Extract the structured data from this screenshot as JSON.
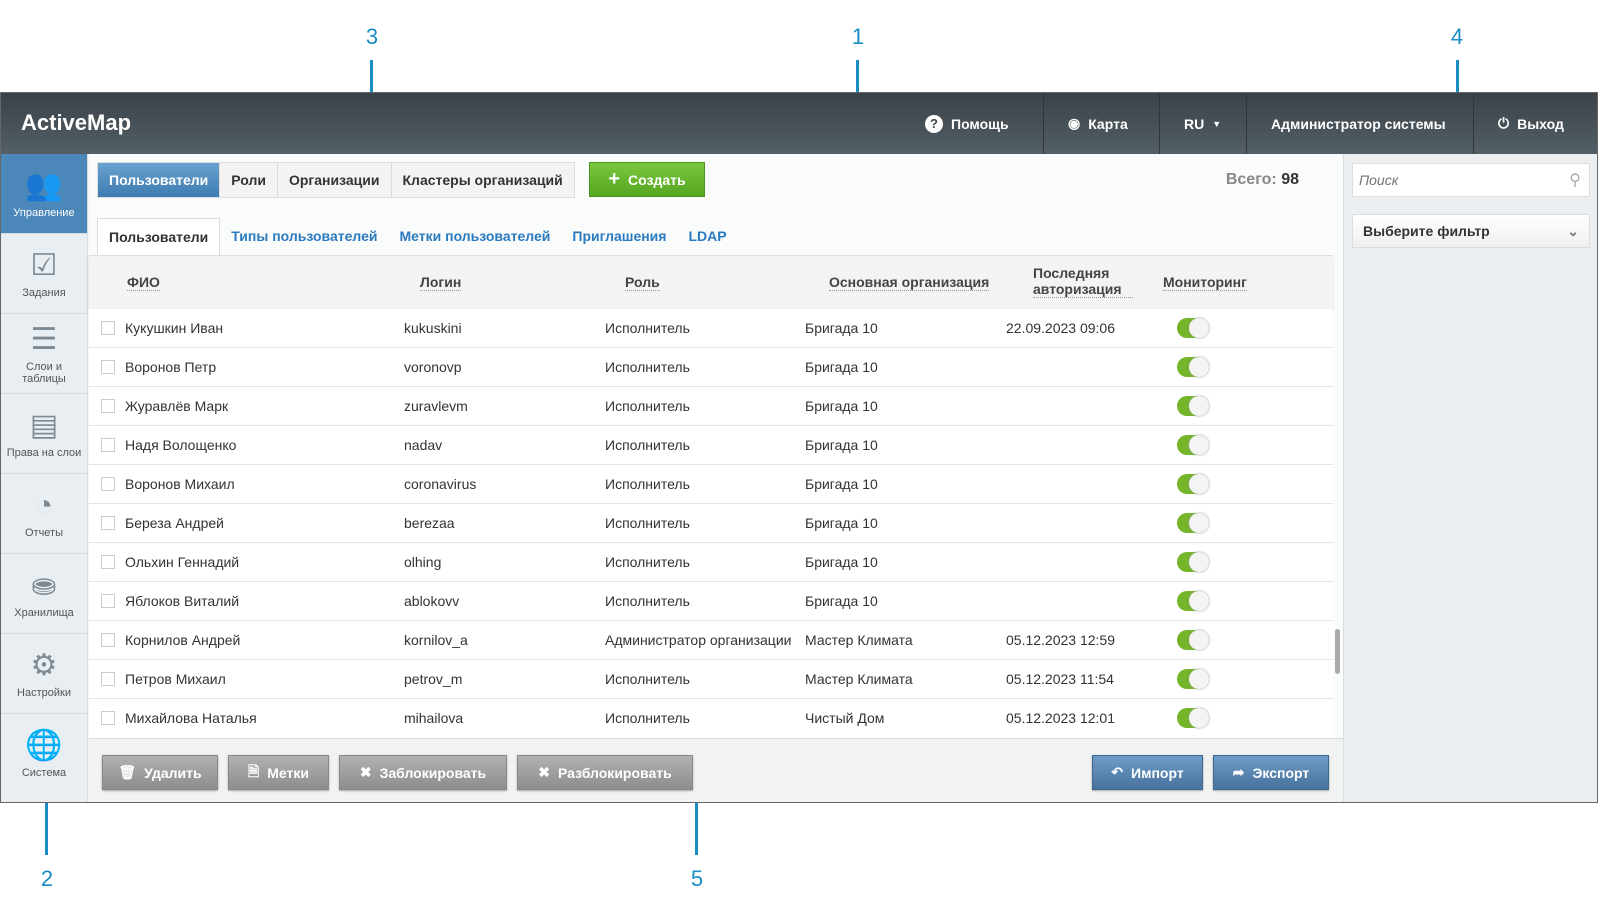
{
  "callouts": [
    "1",
    "2",
    "3",
    "4",
    "5"
  ],
  "header": {
    "logo": "ActiveMap",
    "help": "Помощь",
    "map": "Карта",
    "lang": "RU",
    "user": "Администратор системы",
    "logout": "Выход"
  },
  "sidebar": {
    "items": [
      {
        "label": "Управление",
        "icon": "users-icon"
      },
      {
        "label": "Задания",
        "icon": "checkbox-icon"
      },
      {
        "label": "Слои и таблицы",
        "icon": "layers-icon"
      },
      {
        "label": "Права на слои",
        "icon": "list-icon"
      },
      {
        "label": "Отчеты",
        "icon": "pie-chart-icon"
      },
      {
        "label": "Хранилища",
        "icon": "database-icon"
      },
      {
        "label": "Настройки",
        "icon": "gears-icon"
      },
      {
        "label": "Система",
        "icon": "globe-copyright-icon"
      }
    ]
  },
  "tabs": [
    "Пользователи",
    "Роли",
    "Организации",
    "Кластеры организаций"
  ],
  "create_label": "Создать",
  "total_label": "Всего:",
  "total_value": "98",
  "subtabs": [
    "Пользователи",
    "Типы пользователей",
    "Метки пользователей",
    "Приглашения",
    "LDAP"
  ],
  "columns": [
    "ФИО",
    "Логин",
    "Роль",
    "Основная организация",
    "Последняя авторизация",
    "Мониторинг"
  ],
  "rows": [
    {
      "name": "Кукушкин Иван",
      "login": "kukuskini",
      "role": "Исполнитель",
      "org": "Бригада 10",
      "last": "22.09.2023 09:06",
      "monitoring": true
    },
    {
      "name": "Воронов Петр",
      "login": "voronovp",
      "role": "Исполнитель",
      "org": "Бригада 10",
      "last": "",
      "monitoring": true
    },
    {
      "name": "Журавлёв Марк",
      "login": "zuravlevm",
      "role": "Исполнитель",
      "org": "Бригада 10",
      "last": "",
      "monitoring": true
    },
    {
      "name": "Надя Волощенко",
      "login": "nadav",
      "role": "Исполнитель",
      "org": "Бригада 10",
      "last": "",
      "monitoring": true
    },
    {
      "name": "Воронов Михаил",
      "login": "coronavirus",
      "role": "Исполнитель",
      "org": "Бригада 10",
      "last": "",
      "monitoring": true
    },
    {
      "name": "Береза Андрей",
      "login": "berezaa",
      "role": "Исполнитель",
      "org": "Бригада 10",
      "last": "",
      "monitoring": true
    },
    {
      "name": "Ольхин Геннадий",
      "login": "olhing",
      "role": "Исполнитель",
      "org": "Бригада 10",
      "last": "",
      "monitoring": true
    },
    {
      "name": "Яблоков Виталий",
      "login": "ablokovv",
      "role": "Исполнитель",
      "org": "Бригада 10",
      "last": "",
      "monitoring": true
    },
    {
      "name": "Корнилов Андрей",
      "login": "kornilov_a",
      "role": "Администратор организации",
      "org": "Мастер Климата",
      "last": "05.12.2023 12:59",
      "monitoring": true
    },
    {
      "name": "Петров Михаил",
      "login": "petrov_m",
      "role": "Исполнитель",
      "org": "Мастер Климата",
      "last": "05.12.2023 11:54",
      "monitoring": true
    },
    {
      "name": "Михайлова Наталья",
      "login": "mihailova",
      "role": "Исполнитель",
      "org": "Чистый Дом",
      "last": "05.12.2023 12:01",
      "monitoring": true
    }
  ],
  "footer": {
    "delete": "Удалить",
    "tags": "Метки",
    "block": "Заблокировать",
    "unblock": "Разблокировать",
    "import": "Импорт",
    "export": "Экспорт"
  },
  "search": {
    "placeholder": "Поиск"
  },
  "filter": {
    "selected": "Выберите фильтр"
  },
  "colors": {
    "accent": "#1a8cc4",
    "active_tab": "#4b87b8",
    "create": "#6ab832",
    "toggle_on": "#74b52a"
  }
}
